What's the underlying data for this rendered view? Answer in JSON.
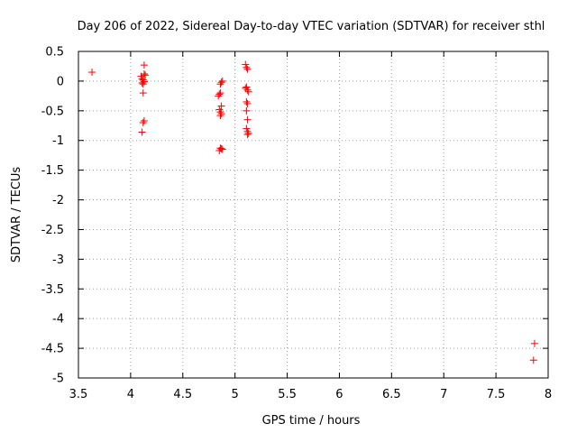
{
  "chart_data": {
    "type": "scatter",
    "title": "Day 206 of 2022, Sidereal Day-to-day VTEC variation (SDTVAR) for receiver sthl",
    "xlabel": "GPS time / hours",
    "ylabel": "SDTVAR / TECUs",
    "xlim": [
      3.5,
      8
    ],
    "ylim": [
      -5,
      0.5
    ],
    "xticks": [
      "3.5",
      "4",
      "4.5",
      "5",
      "5.5",
      "6",
      "6.5",
      "7",
      "7.5",
      "8"
    ],
    "yticks": [
      "0.5",
      "0",
      "-0.5",
      "-1",
      "-1.5",
      "-2",
      "-2.5",
      "-3",
      "-3.5",
      "-4",
      "-4.5",
      "-5"
    ],
    "grid": true,
    "marker": "plus",
    "color": "#ff0000",
    "points": [
      [
        3.63,
        0.15
      ],
      [
        4.1,
        0.08
      ],
      [
        4.11,
        0.04
      ],
      [
        4.12,
        0.02
      ],
      [
        4.11,
        -0.03
      ],
      [
        4.12,
        -0.05
      ],
      [
        4.13,
        -0.01
      ],
      [
        4.13,
        0.12
      ],
      [
        4.14,
        0.1
      ],
      [
        4.13,
        0.27
      ],
      [
        4.12,
        -0.2
      ],
      [
        4.11,
        -0.86
      ],
      [
        4.12,
        -0.7
      ],
      [
        4.13,
        -0.67
      ],
      [
        4.84,
        -0.25
      ],
      [
        4.85,
        -0.22
      ],
      [
        4.86,
        -0.05
      ],
      [
        4.87,
        -0.02
      ],
      [
        4.86,
        -0.2
      ],
      [
        4.85,
        -0.48
      ],
      [
        4.86,
        -0.52
      ],
      [
        4.87,
        -0.55
      ],
      [
        4.86,
        -0.58
      ],
      [
        4.87,
        -0.42
      ],
      [
        4.85,
        -1.17
      ],
      [
        4.86,
        -1.13
      ],
      [
        4.87,
        -1.14
      ],
      [
        4.88,
        -1.15
      ],
      [
        4.88,
        0.0
      ],
      [
        5.1,
        0.28
      ],
      [
        5.11,
        0.23
      ],
      [
        5.12,
        0.2
      ],
      [
        5.1,
        -0.12
      ],
      [
        5.11,
        -0.1
      ],
      [
        5.12,
        -0.15
      ],
      [
        5.13,
        -0.18
      ],
      [
        5.11,
        -0.35
      ],
      [
        5.12,
        -0.38
      ],
      [
        5.11,
        -0.5
      ],
      [
        5.12,
        -0.65
      ],
      [
        5.11,
        -0.8
      ],
      [
        5.12,
        -0.85
      ],
      [
        5.13,
        -0.88
      ],
      [
        5.12,
        -0.9
      ],
      [
        7.87,
        -4.42
      ],
      [
        7.86,
        -4.7
      ]
    ]
  }
}
